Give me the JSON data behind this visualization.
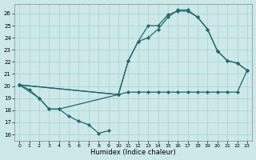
{
  "xlabel": "Humidex (Indice chaleur)",
  "xlim": [
    -0.5,
    23.5
  ],
  "ylim": [
    15.5,
    26.8
  ],
  "yticks": [
    16,
    17,
    18,
    19,
    20,
    21,
    22,
    23,
    24,
    25,
    26
  ],
  "xticks": [
    0,
    1,
    2,
    3,
    4,
    5,
    6,
    7,
    8,
    9,
    10,
    11,
    12,
    13,
    14,
    15,
    16,
    17,
    18,
    19,
    20,
    21,
    22,
    23
  ],
  "background_color": "#cce8e8",
  "grid_color": "#aad0d0",
  "line_color": "#1e6b6b",
  "line_width": 0.9,
  "marker": "D",
  "marker_size": 2.2,
  "lines": [
    {
      "x": [
        0,
        1,
        2,
        3,
        4,
        5,
        6,
        7,
        8,
        9
      ],
      "y": [
        20.1,
        19.7,
        19.0,
        18.1,
        18.1,
        17.5,
        17.1,
        16.8,
        16.1,
        16.3
      ]
    },
    {
      "x": [
        0,
        2,
        3,
        4,
        10,
        11,
        12,
        13,
        14,
        15,
        16,
        17,
        18,
        19,
        20,
        21,
        22,
        23
      ],
      "y": [
        20.1,
        19.0,
        18.1,
        18.1,
        19.3,
        19.5,
        19.5,
        19.5,
        19.5,
        19.5,
        19.5,
        19.5,
        19.5,
        19.5,
        19.5,
        19.5,
        19.5,
        21.3
      ]
    },
    {
      "x": [
        0,
        10,
        11,
        12,
        13,
        14,
        15,
        16,
        17,
        18,
        19,
        20,
        21,
        22,
        23
      ],
      "y": [
        20.1,
        19.3,
        22.1,
        23.7,
        25.0,
        25.0,
        25.9,
        26.2,
        26.2,
        25.7,
        24.7,
        22.9,
        22.1,
        21.9,
        21.3
      ]
    },
    {
      "x": [
        0,
        10,
        11,
        12,
        13,
        14,
        15,
        16,
        17,
        18,
        19,
        20,
        21,
        22,
        23
      ],
      "y": [
        20.1,
        19.3,
        22.1,
        23.7,
        24.0,
        24.7,
        25.7,
        26.3,
        26.3,
        25.7,
        24.7,
        22.9,
        22.1,
        21.9,
        21.3
      ]
    }
  ]
}
